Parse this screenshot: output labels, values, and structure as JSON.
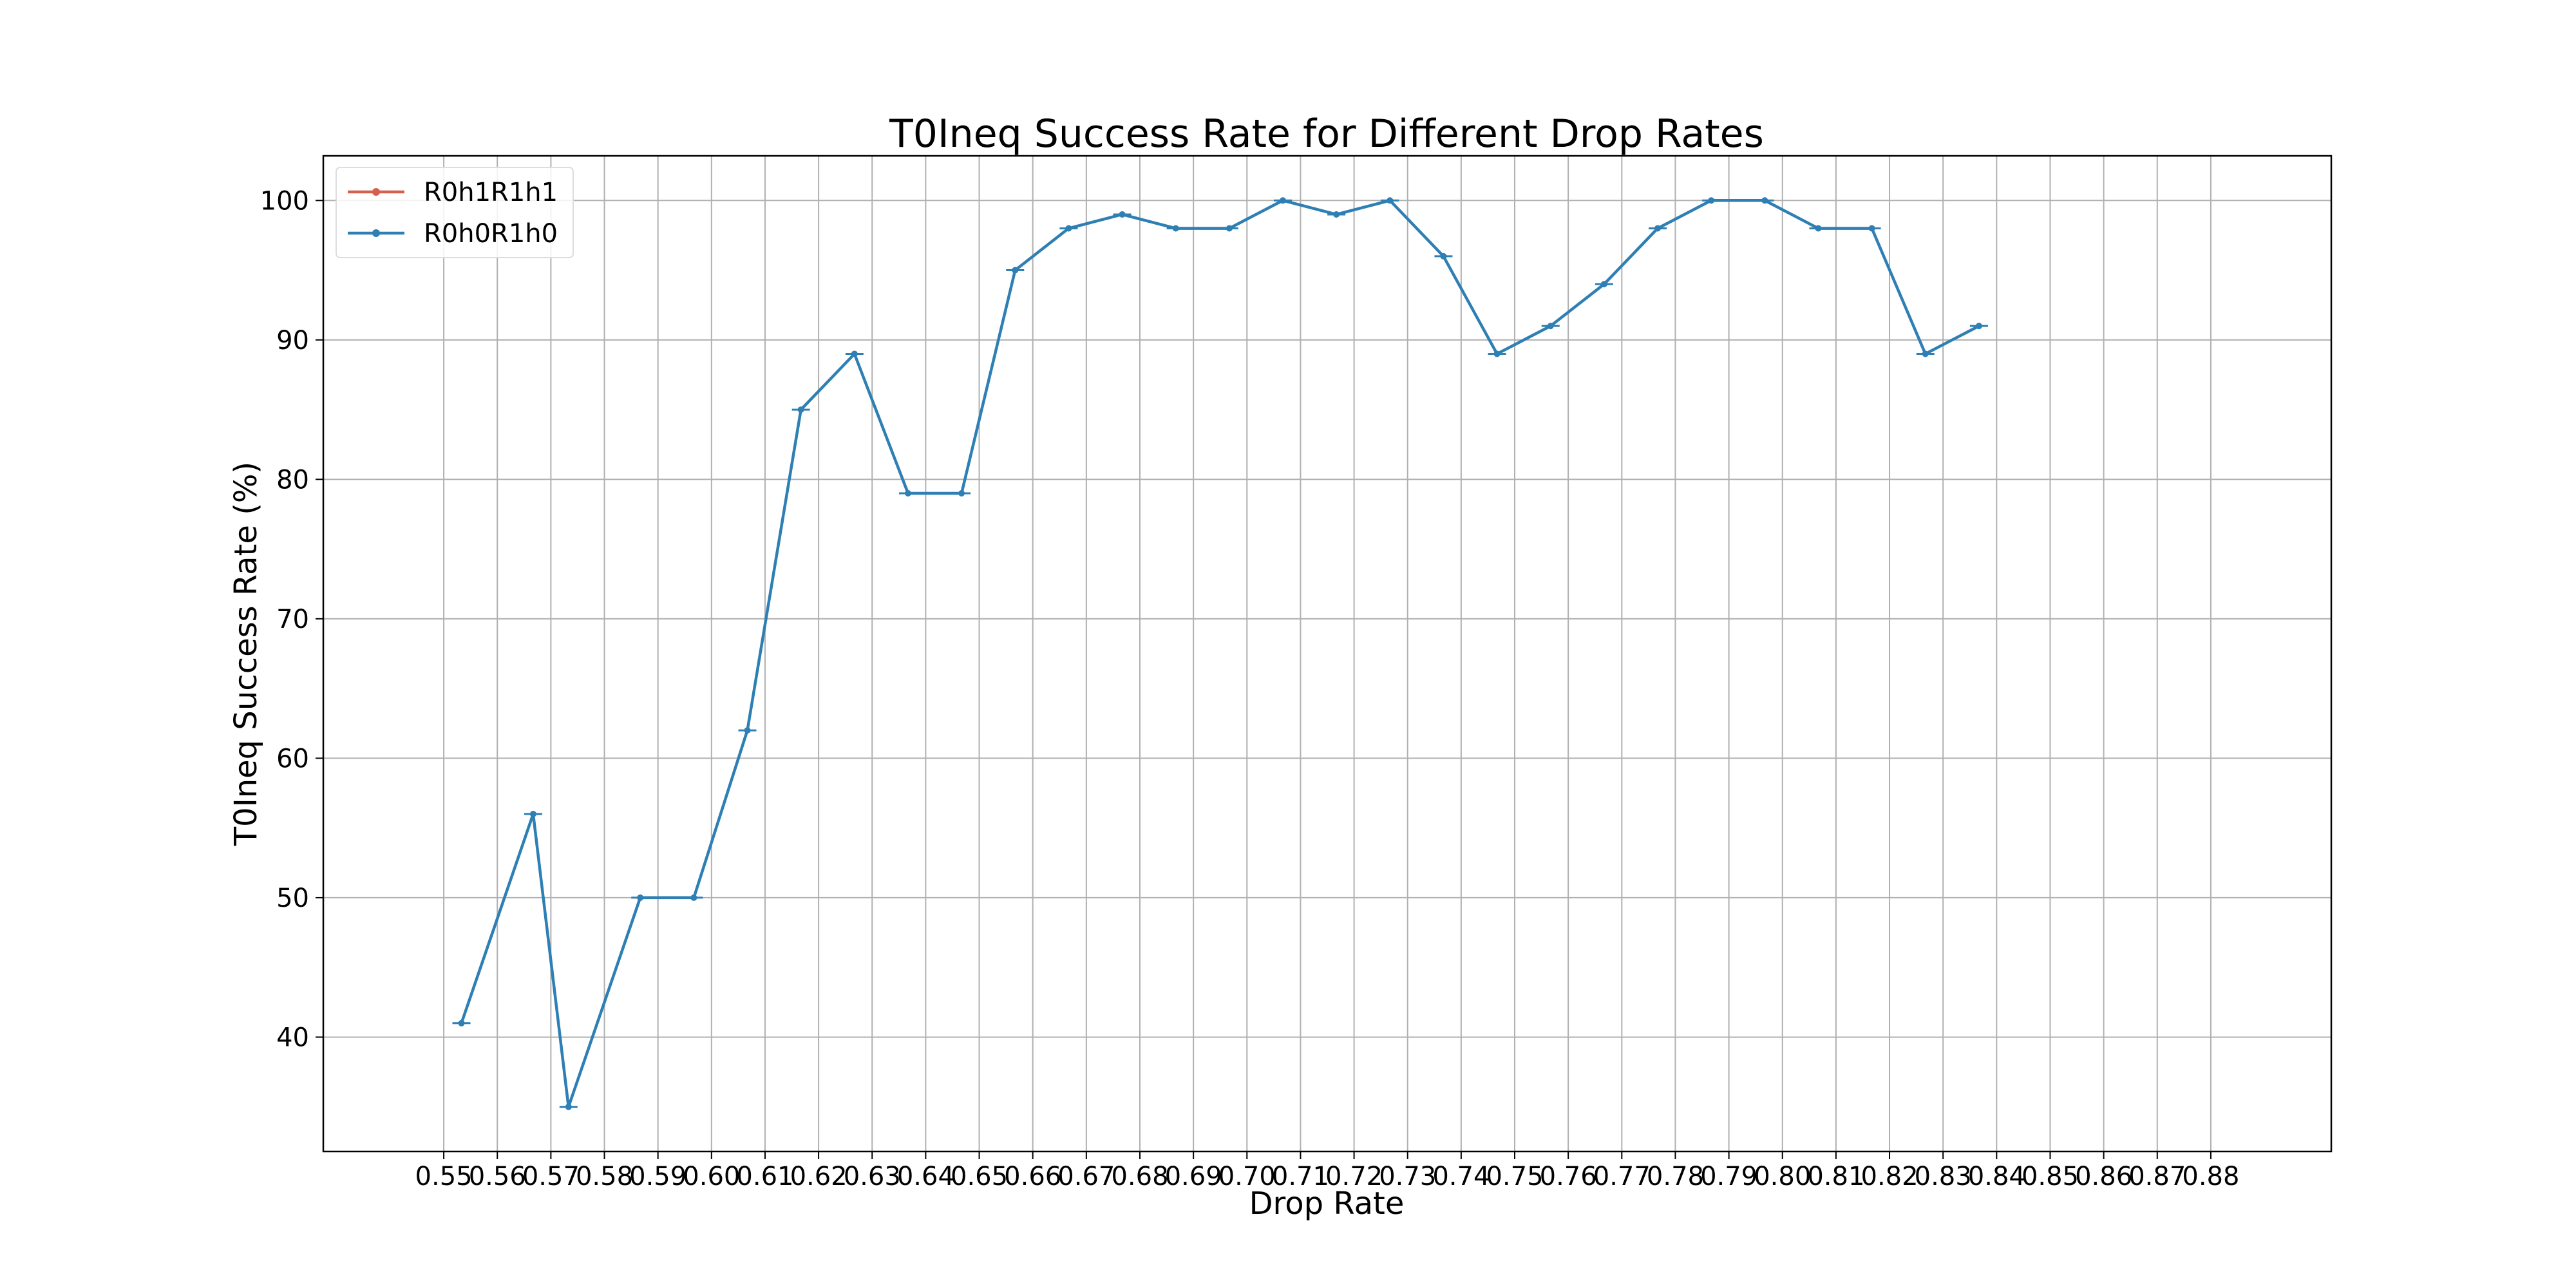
{
  "chart_data": {
    "type": "line",
    "title": "T0Ineq Success Rate for Different Drop Rates",
    "xlabel": "Drop Rate",
    "ylabel": "T0Ineq Success Rate (%)",
    "grid": true,
    "legend_position": "top-left",
    "x": [
      "0.55",
      "0.56",
      "0.57",
      "0.58",
      "0.59",
      "0.60",
      "0.61",
      "0.62",
      "0.63",
      "0.64",
      "0.65",
      "0.66",
      "0.67",
      "0.68",
      "0.69",
      "0.70",
      "0.71",
      "0.72",
      "0.73",
      "0.74",
      "0.75",
      "0.76",
      "0.77",
      "0.78",
      "0.79",
      "0.80",
      "0.81",
      "0.82",
      "0.83",
      "0.84",
      "0.85",
      "0.86",
      "0.87",
      "0.88"
    ],
    "xlim": [
      0.5275,
      0.9025
    ],
    "ylim": [
      31.8,
      103.2
    ],
    "yticks": [
      40,
      50,
      60,
      70,
      80,
      90,
      100
    ],
    "series": [
      {
        "name": "R0h1R1h1",
        "color": "#d6604d",
        "points": []
      },
      {
        "name": "R0h0R1h0",
        "color": "#2e7fb4",
        "points": [
          [
            0.5533,
            41
          ],
          [
            0.5667,
            56
          ],
          [
            0.5733,
            35
          ],
          [
            0.5867,
            50
          ],
          [
            0.5967,
            50
          ],
          [
            0.6067,
            62
          ],
          [
            0.6167,
            85
          ],
          [
            0.6267,
            89
          ],
          [
            0.6367,
            79
          ],
          [
            0.6467,
            79
          ],
          [
            0.6567,
            95
          ],
          [
            0.6667,
            98
          ],
          [
            0.6767,
            99
          ],
          [
            0.6867,
            98
          ],
          [
            0.6967,
            98
          ],
          [
            0.7067,
            100
          ],
          [
            0.7167,
            99
          ],
          [
            0.7267,
            100
          ],
          [
            0.7367,
            96
          ],
          [
            0.7467,
            89
          ],
          [
            0.7567,
            91
          ],
          [
            0.7667,
            94
          ],
          [
            0.7767,
            98
          ],
          [
            0.7867,
            100
          ],
          [
            0.7967,
            100
          ],
          [
            0.8067,
            98
          ],
          [
            0.8167,
            98
          ],
          [
            0.8267,
            89
          ],
          [
            0.8367,
            91
          ]
        ]
      }
    ]
  }
}
